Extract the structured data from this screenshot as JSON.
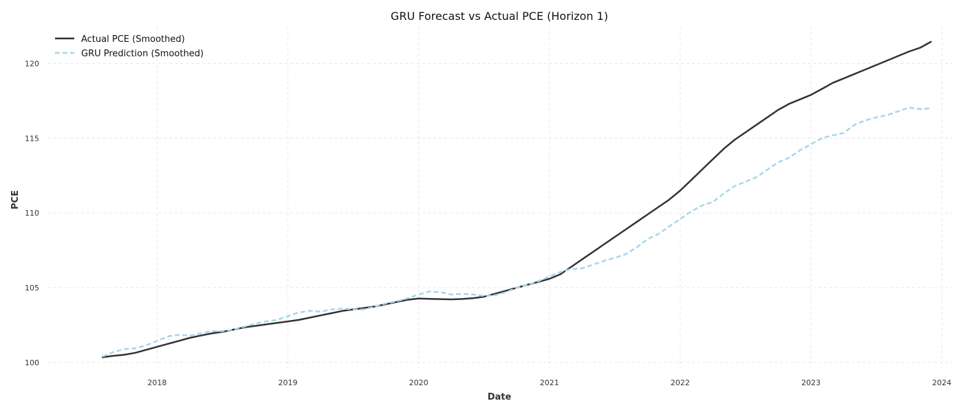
{
  "chart_data": {
    "type": "line",
    "title": "GRU Forecast vs Actual PCE (Horizon 1)",
    "xlabel": "Date",
    "ylabel": "PCE",
    "x_ticks": [
      "2018",
      "2019",
      "2020",
      "2021",
      "2022",
      "2023",
      "2024"
    ],
    "y_ticks": [
      "100",
      "105",
      "110",
      "115",
      "120"
    ],
    "xlim": [
      "2017-03",
      "2024-02"
    ],
    "ylim": [
      99.4,
      122.5
    ],
    "grid": true,
    "legend_position": "top-left",
    "x": [
      "2017-08",
      "2017-09",
      "2017-10",
      "2017-11",
      "2017-12",
      "2018-01",
      "2018-02",
      "2018-03",
      "2018-04",
      "2018-05",
      "2018-06",
      "2018-07",
      "2018-08",
      "2018-09",
      "2018-10",
      "2018-11",
      "2018-12",
      "2019-01",
      "2019-02",
      "2019-03",
      "2019-04",
      "2019-05",
      "2019-06",
      "2019-07",
      "2019-08",
      "2019-09",
      "2019-10",
      "2019-11",
      "2019-12",
      "2020-01",
      "2020-02",
      "2020-03",
      "2020-04",
      "2020-05",
      "2020-06",
      "2020-07",
      "2020-08",
      "2020-09",
      "2020-10",
      "2020-11",
      "2020-12",
      "2021-01",
      "2021-02",
      "2021-03",
      "2021-04",
      "2021-05",
      "2021-06",
      "2021-07",
      "2021-08",
      "2021-09",
      "2021-10",
      "2021-11",
      "2021-12",
      "2022-01",
      "2022-02",
      "2022-03",
      "2022-04",
      "2022-05",
      "2022-06",
      "2022-07",
      "2022-08",
      "2022-09",
      "2022-10",
      "2022-11",
      "2022-12",
      "2023-01",
      "2023-02",
      "2023-03",
      "2023-04",
      "2023-05",
      "2023-06",
      "2023-07",
      "2023-08",
      "2023-09",
      "2023-10",
      "2023-11",
      "2023-12"
    ],
    "series": [
      {
        "name": "Actual PCE (Smoothed)",
        "color": "#333333",
        "dash": "solid",
        "values": [
          100.35,
          100.45,
          100.52,
          100.65,
          100.85,
          101.05,
          101.25,
          101.45,
          101.65,
          101.8,
          101.95,
          102.05,
          102.2,
          102.35,
          102.45,
          102.55,
          102.65,
          102.75,
          102.85,
          103.0,
          103.15,
          103.3,
          103.45,
          103.55,
          103.65,
          103.75,
          103.9,
          104.05,
          104.2,
          104.28,
          104.26,
          104.24,
          104.22,
          104.25,
          104.3,
          104.4,
          104.6,
          104.8,
          105.0,
          105.2,
          105.4,
          105.6,
          105.9,
          106.4,
          106.9,
          107.4,
          107.9,
          108.4,
          108.9,
          109.4,
          109.9,
          110.4,
          110.9,
          111.5,
          112.2,
          112.9,
          113.6,
          114.3,
          114.9,
          115.4,
          115.9,
          116.4,
          116.9,
          117.3,
          117.6,
          117.9,
          118.3,
          118.7,
          119.0,
          119.3,
          119.6,
          119.9,
          120.2,
          120.5,
          120.8,
          121.05,
          121.45
        ]
      },
      {
        "name": "GRU Prediction (Smoothed)",
        "color": "#a6d6ea",
        "dash": "dashed",
        "values": [
          100.4,
          100.7,
          100.9,
          100.95,
          101.15,
          101.45,
          101.75,
          101.85,
          101.8,
          101.95,
          102.1,
          102.1,
          102.2,
          102.4,
          102.6,
          102.75,
          102.85,
          103.1,
          103.35,
          103.45,
          103.4,
          103.55,
          103.6,
          103.55,
          103.55,
          103.75,
          103.95,
          104.1,
          104.3,
          104.55,
          104.75,
          104.7,
          104.55,
          104.6,
          104.55,
          104.45,
          104.5,
          104.7,
          105.0,
          105.2,
          105.45,
          105.75,
          106.05,
          106.25,
          106.3,
          106.55,
          106.8,
          107.0,
          107.25,
          107.7,
          108.25,
          108.6,
          109.1,
          109.6,
          110.1,
          110.5,
          110.75,
          111.3,
          111.8,
          112.1,
          112.4,
          112.9,
          113.4,
          113.7,
          114.2,
          114.6,
          115.0,
          115.2,
          115.35,
          115.9,
          116.2,
          116.4,
          116.55,
          116.8,
          117.05,
          116.95,
          117.0
        ]
      }
    ]
  }
}
